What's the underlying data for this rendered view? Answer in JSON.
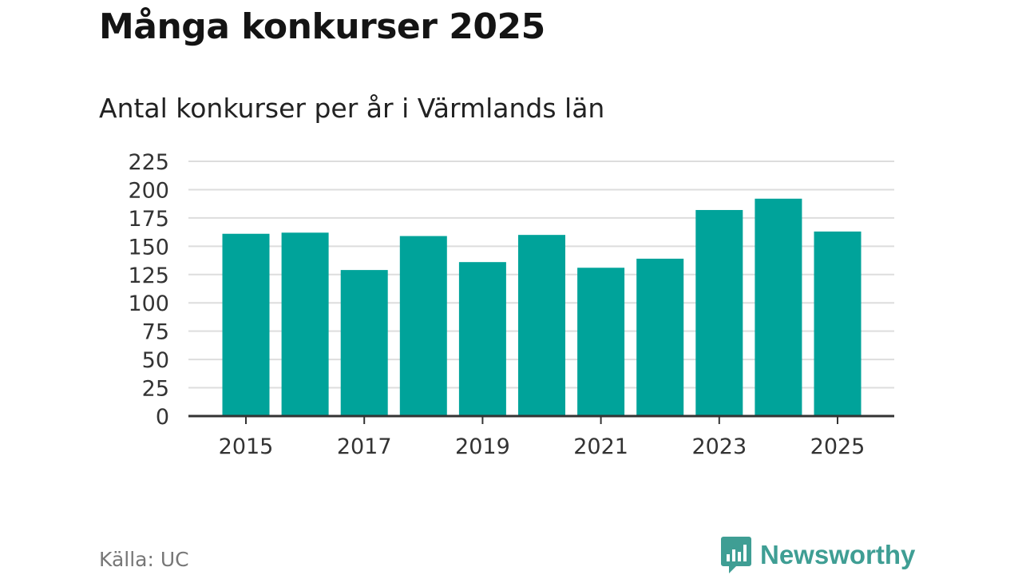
{
  "title": "Många konkurser 2025",
  "subtitle": "Antal konkurser per år i Värmlands län",
  "source": "Källa: UC",
  "brand": {
    "name": "Newsworthy",
    "icon": "bar-chart-bubble-icon",
    "color": "#3f9e94"
  },
  "colors": {
    "bar": "#00a39a",
    "grid": "#dddddd",
    "axis": "#333333"
  },
  "chart_data": {
    "type": "bar",
    "title": "Antal konkurser per år i Värmlands län",
    "xlabel": "",
    "ylabel": "",
    "categories": [
      "2015",
      "2016",
      "2017",
      "2018",
      "2019",
      "2020",
      "2021",
      "2022",
      "2023",
      "2024",
      "2025"
    ],
    "values": [
      161,
      162,
      129,
      159,
      136,
      160,
      131,
      139,
      182,
      192,
      163
    ],
    "ylim": [
      0,
      225
    ],
    "yticks": [
      "0",
      "25",
      "50",
      "75",
      "100",
      "125",
      "150",
      "175",
      "200",
      "225"
    ],
    "xtick_labels": [
      "2015",
      "2017",
      "2019",
      "2021",
      "2023",
      "2025"
    ],
    "grid": true,
    "legend": "none"
  }
}
